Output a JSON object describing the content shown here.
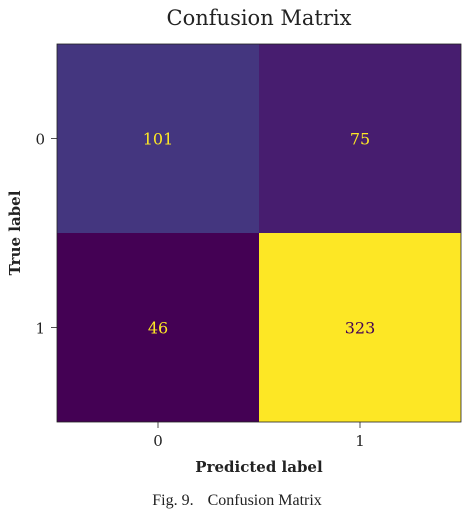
{
  "chart_data": {
    "type": "heatmap",
    "title": "Confusion Matrix",
    "xlabel": "Predicted label",
    "ylabel": "True label",
    "x_ticks": [
      "0",
      "1"
    ],
    "y_ticks": [
      "0",
      "1"
    ],
    "matrix": [
      [
        101,
        75
      ],
      [
        46,
        323
      ]
    ],
    "colormap": "viridis",
    "value_range": [
      46,
      323
    ],
    "colorbar": false,
    "grid": false
  },
  "caption": {
    "number": "Fig. 9.",
    "text": "Confusion Matrix"
  }
}
